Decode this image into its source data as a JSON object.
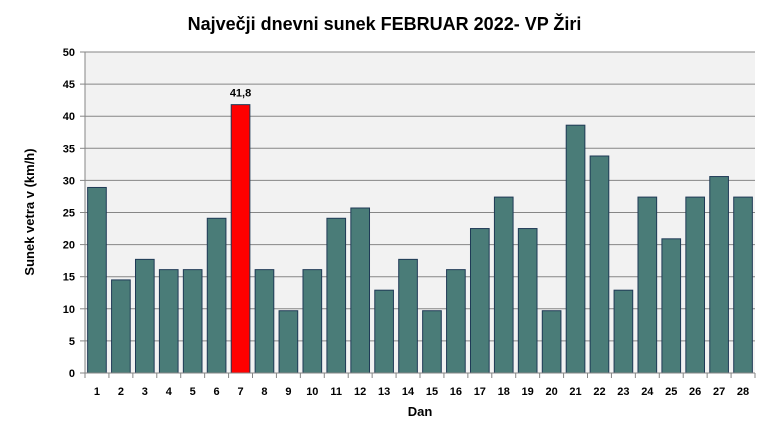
{
  "chart_data": {
    "type": "bar",
    "title": "Največji dnevni sunek FEBRUAR 2022- VP Žiri",
    "xlabel": "Dan",
    "ylabel": "Sunek vetra  v (km/h)",
    "ylim": [
      0,
      50
    ],
    "yticks": [
      0,
      5,
      10,
      15,
      20,
      25,
      30,
      35,
      40,
      45,
      50
    ],
    "grid": true,
    "legend": "none",
    "categories": [
      "1",
      "2",
      "3",
      "4",
      "5",
      "6",
      "7",
      "8",
      "9",
      "10",
      "11",
      "12",
      "13",
      "14",
      "15",
      "16",
      "17",
      "18",
      "19",
      "20",
      "21",
      "22",
      "23",
      "24",
      "25",
      "26",
      "27",
      "28"
    ],
    "values": [
      28.9,
      14.5,
      17.7,
      16.1,
      16.1,
      24.1,
      41.8,
      16.1,
      9.7,
      16.1,
      24.1,
      25.7,
      12.9,
      17.7,
      9.7,
      16.1,
      22.5,
      27.4,
      22.5,
      9.7,
      38.6,
      33.8,
      12.9,
      27.4,
      20.9,
      27.4,
      30.6,
      27.4
    ],
    "highlight_index": 6,
    "data_labels": [
      {
        "index": 6,
        "text": "41,8"
      }
    ],
    "colors": {
      "bar": "#4a7c78",
      "bar_highlight": "#ff0000",
      "bar_outline": "#1f3a56",
      "plot_background": "#f2f2f2",
      "gridline": "#868686"
    }
  }
}
